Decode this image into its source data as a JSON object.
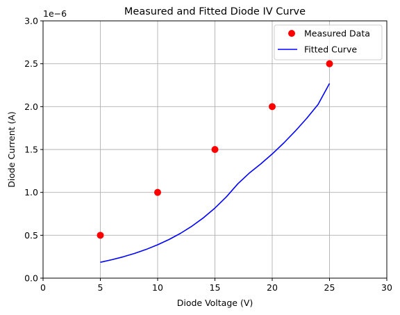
{
  "chart_data": {
    "type": "scatter",
    "title": "Measured and Fitted Diode IV Curve",
    "xlabel": "Diode Voltage (V)",
    "ylabel": "Diode Current (A)",
    "y_offset_label": "1e−6",
    "xlim": [
      0,
      30
    ],
    "ylim": [
      0,
      3.0
    ],
    "x_ticks": [
      0,
      5,
      10,
      15,
      20,
      25,
      30
    ],
    "x_tick_labels": [
      "0",
      "5",
      "10",
      "15",
      "20",
      "25",
      "30"
    ],
    "y_ticks": [
      0,
      0.5,
      1.0,
      1.5,
      2.0,
      2.5,
      3.0
    ],
    "y_tick_labels": [
      "0.0",
      "0.5",
      "1.0",
      "1.5",
      "2.0",
      "2.5",
      "3.0"
    ],
    "grid": true,
    "legend_position": "top-right",
    "series": [
      {
        "name": "Measured Data",
        "kind": "points",
        "color": "#ff0000",
        "x": [
          5,
          10,
          15,
          20,
          25
        ],
        "y": [
          0.5,
          1.0,
          1.5,
          2.0,
          2.5
        ]
      },
      {
        "name": "Fitted Curve",
        "kind": "line",
        "color": "#0000ff",
        "x": [
          5,
          6,
          7,
          8,
          9,
          10,
          11,
          12,
          13,
          14,
          15,
          16,
          17,
          18,
          19,
          20,
          21,
          22,
          23,
          24,
          25
        ],
        "y": [
          0.185,
          0.215,
          0.249,
          0.289,
          0.335,
          0.389,
          0.451,
          0.523,
          0.607,
          0.704,
          0.817,
          0.948,
          1.1,
          1.225,
          1.332,
          1.448,
          1.575,
          1.713,
          1.862,
          2.025,
          2.27
        ]
      }
    ]
  }
}
